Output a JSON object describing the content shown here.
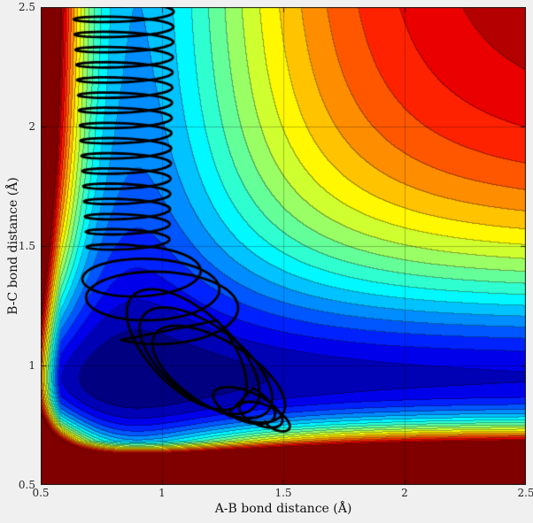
{
  "figure": {
    "bg": "#f0f0f0",
    "plot_border_color": "#1a1a1a",
    "grid_color": "rgba(0,0,0,0.25)"
  },
  "axes": {
    "xlabel": "A-B bond distance (Å)",
    "ylabel": "B-C bond distance (Å)",
    "tick_values": [
      0.5,
      1,
      1.5,
      2,
      2.5
    ],
    "tick_labels": [
      "0.5",
      "1",
      "1.5",
      "2",
      "2.5"
    ]
  },
  "chart_data": {
    "type": "filled_contour_with_trajectory",
    "title": "",
    "xlabel": "A-B bond distance (Å)",
    "ylabel": "B-C bond distance (Å)",
    "xlim": [
      0.5,
      2.5
    ],
    "ylim": [
      0.5,
      2.5
    ],
    "xticks": [
      0.5,
      1,
      1.5,
      2,
      2.5
    ],
    "yticks": [
      0.5,
      1,
      1.5,
      2,
      2.5
    ],
    "grid": true,
    "legend": "none",
    "colormap": "jet",
    "n_levels": 20,
    "value_range": [
      -1.45,
      0
    ],
    "surface_model": {
      "description": "Potential energy surface (collinear A-B-C reaction). V(x,y)=D1*m1+D2*m2+K*clamp(m1,-1,0)*clamp(m2,-1,0), with m(r)=(1-exp(-a*(r-re)))^2-1. Reactant valley along x=re1 (cyan), deeper product valley along y=re2 (dark blue), repulsive walls at small distances and high dissociation plateau at top-right (dark red).",
      "D1": 1.0,
      "a1": 2.2,
      "re1": 0.9,
      "D2": 1.3,
      "a2": 2.6,
      "re2": 0.95,
      "K": 0.85
    },
    "trajectory": {
      "description": "Quasi-classical trajectory: vibrating A-B molecule approaches along reactant valley (zig-zag, top), reacts in corner region (large tilted loops), exits along product valley ending near (1.55, 0.73).",
      "color": "#000000",
      "line_width": 2.8,
      "phases": [
        {
          "steps": 650,
          "x": {
            "base": 0.84,
            "drift": 0.02,
            "amp": 0.21,
            "amp_drift": -0.04,
            "freq": 17,
            "phase": 0
          },
          "y": {
            "base": 2.56,
            "drift": -1.08,
            "amp": 0.025,
            "amp_drift": 0,
            "freq": 17,
            "phase": 1.5708
          }
        },
        {
          "steps": 220,
          "x": {
            "base": 0.9,
            "drift": 0.12,
            "amp": 0.24,
            "amp_drift": 0.08,
            "freq": 2.6,
            "phase": 0
          },
          "y": {
            "base": 1.42,
            "drift": -0.2,
            "amp": 0.08,
            "amp_drift": 0.06,
            "freq": 2.6,
            "phase": 1.5708
          }
        },
        {
          "steps": 320,
          "x": {
            "base": 1.08,
            "drift": 0.18,
            "amp": 0.26,
            "amp_drift": 0,
            "freq": 3.4,
            "phase": 0.6
          },
          "y": {
            "base": 1.1,
            "drift": -0.16,
            "amp": 0.28,
            "amp_drift": -0.1,
            "freq": 3.4,
            "phase": 2.8208
          }
        },
        {
          "steps": 200,
          "x": {
            "base": 1.3,
            "drift": 0.18,
            "amp": 0.16,
            "amp_drift": -0.1,
            "freq": 2.6,
            "phase": 0.5
          },
          "y": {
            "base": 0.86,
            "drift": -0.1,
            "amp": 0.1,
            "amp_drift": -0.06,
            "freq": 2.6,
            "phase": 2.6708
          }
        }
      ]
    }
  }
}
